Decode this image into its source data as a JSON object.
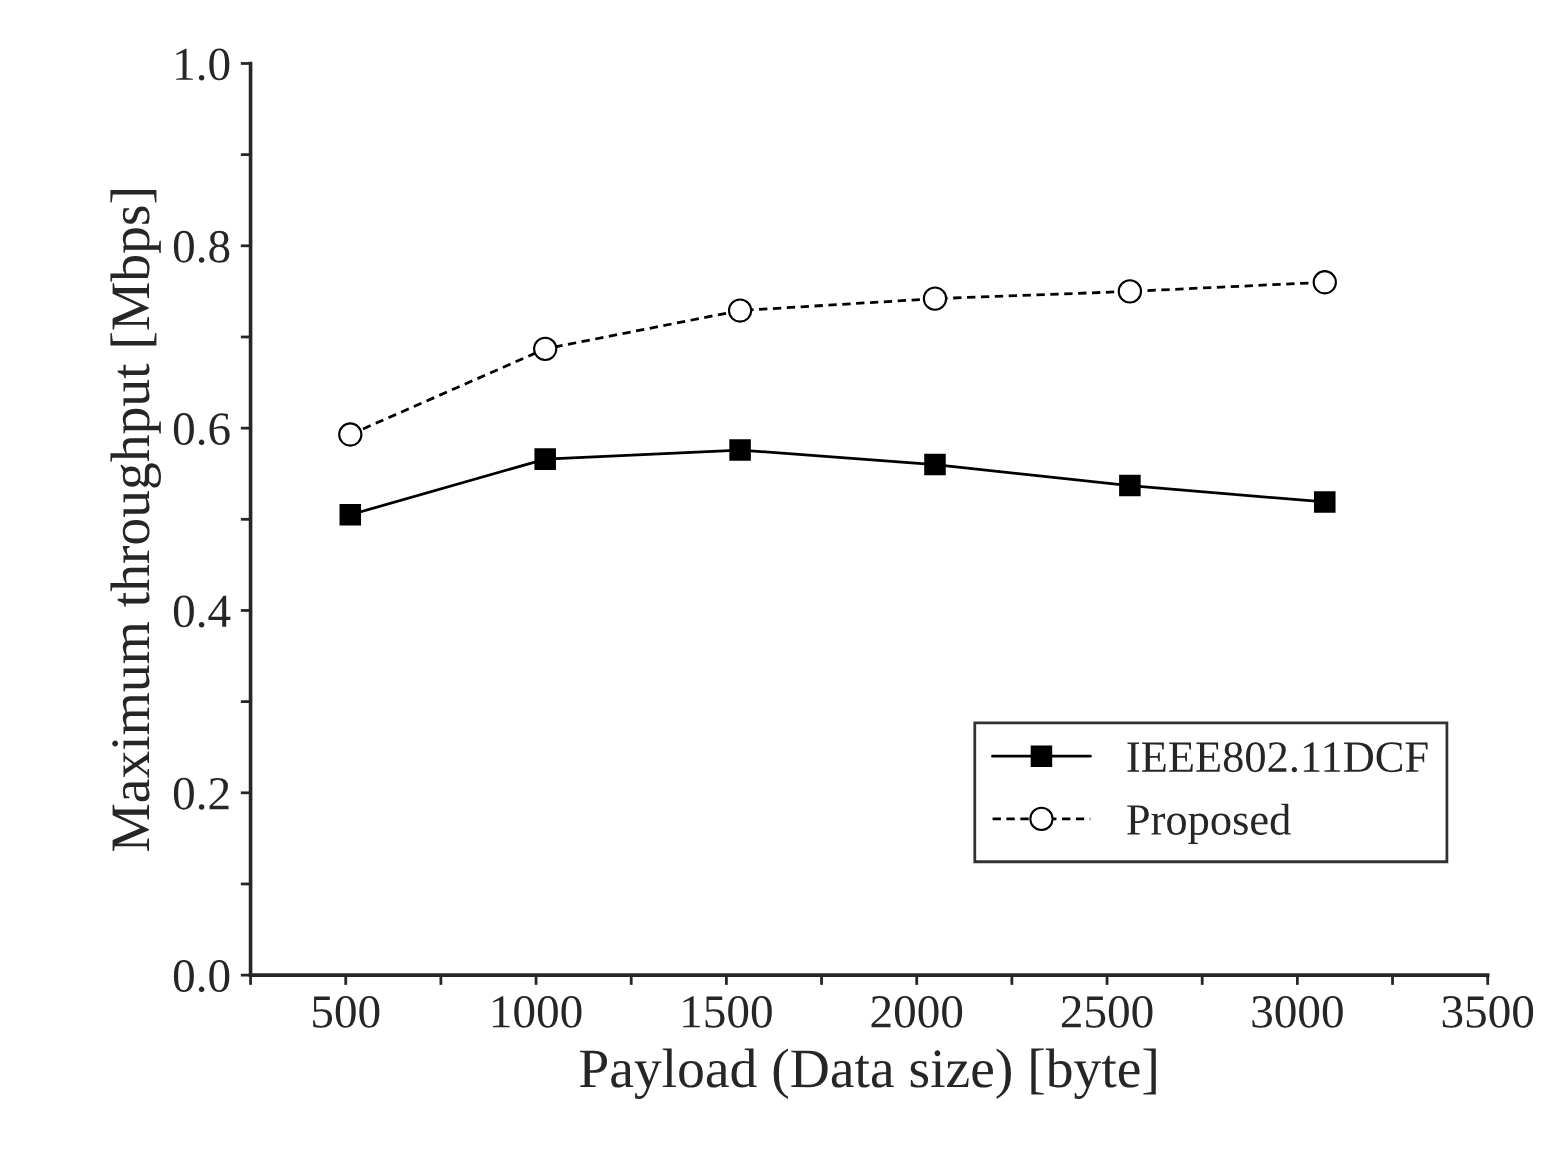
{
  "chart_data": {
    "type": "line",
    "xlabel": "Payload (Data size) [byte]",
    "ylabel": "Maximum throughput [Mbps]",
    "x": [
      512,
      1024,
      1536,
      2048,
      2560,
      3072
    ],
    "series": [
      {
        "name": "IEEE802.11DCF",
        "color": "#000000",
        "values": [
          0.505,
          0.566,
          0.576,
          0.56,
          0.537,
          0.519
        ],
        "marker": "square",
        "line_style": "solid"
      },
      {
        "name": "Proposed",
        "color": "#000000",
        "values": [
          0.593,
          0.687,
          0.729,
          0.742,
          0.75,
          0.76
        ],
        "marker": "circle",
        "line_style": "dashed"
      }
    ],
    "xlim": [
      250,
      3500
    ],
    "xticks": [
      {
        "value": 250,
        "label": null
      },
      500,
      {
        "value": 750,
        "label": null
      },
      1000,
      {
        "value": 1250,
        "label": null
      },
      1500,
      {
        "value": 1750,
        "label": null
      },
      2000,
      {
        "value": 2250,
        "label": null
      },
      2500,
      {
        "value": 2750,
        "label": null
      },
      3000,
      {
        "value": 3250,
        "label": null
      },
      3500
    ],
    "ylim": [
      0,
      1.0
    ],
    "yticks": [
      {
        "value": 0,
        "label": "0.0"
      },
      {
        "value": 0.1,
        "label": null
      },
      {
        "value": 0.2,
        "label": "0.2"
      },
      {
        "value": 0.3,
        "label": null
      },
      {
        "value": 0.4,
        "label": "0.4"
      },
      {
        "value": 0.5,
        "label": null
      },
      {
        "value": 0.6,
        "label": "0.6"
      },
      {
        "value": 0.7,
        "label": null
      },
      {
        "value": 0.8,
        "label": "0.8"
      },
      {
        "value": 0.9,
        "label": null
      },
      {
        "value": 1.0,
        "label": "1.0"
      }
    ],
    "grid": false,
    "legend": "bottom right"
  }
}
